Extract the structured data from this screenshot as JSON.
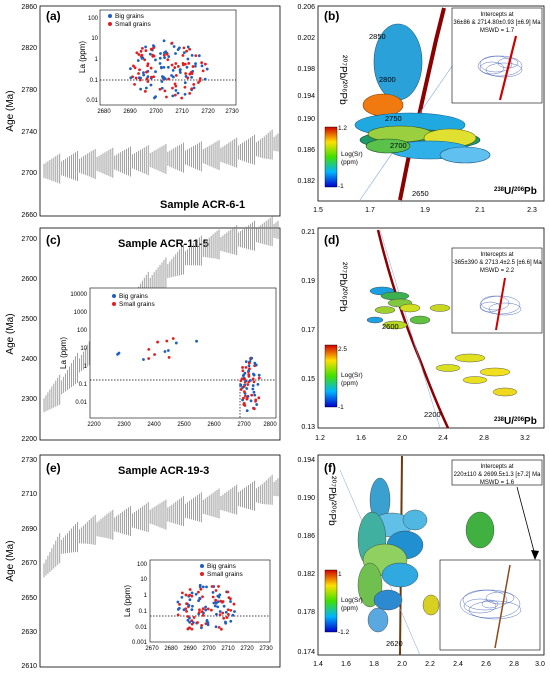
{
  "panels": [
    {
      "letter": "(a)",
      "sample": "Sample ACR-6-1",
      "ylabel": "Age (Ma)",
      "yticks": [
        "2860",
        "2820",
        "2780",
        "2740",
        "2700",
        "2660"
      ],
      "inset": {
        "ylabel": "La (ppm)",
        "yticks": [
          "100",
          "10",
          "1",
          "0.1",
          "0.01"
        ],
        "xticks": [
          "2680",
          "2690",
          "2700",
          "2710",
          "2720",
          "2730"
        ],
        "legend": [
          "Big grains",
          "Small grains"
        ]
      }
    },
    {
      "letter": "(b)",
      "yticks": [
        "0.206",
        "0.202",
        "0.198",
        "0.194",
        "0.190",
        "0.186",
        "0.182"
      ],
      "xticks": [
        "1.5",
        "1.7",
        "1.9",
        "2.1",
        "2.3"
      ],
      "xlabel_main": "U/",
      "xlabel_sup1": "238",
      "xlabel_sup2": "206",
      "xlabel_tail": "Pb",
      "ylabel": "²⁰⁷Pb/²⁰⁶Pb",
      "age_labels": [
        "2850",
        "2800",
        "2750",
        "2700",
        "2650"
      ],
      "colorbar": {
        "max": "1.2",
        "min": "-1",
        "label1": "Log(Sr)",
        "label2": "(ppm)"
      },
      "intercepts": [
        "Intercepts at",
        "36±86 & 2714.80±0.93 [±6.9] Ma",
        "MSWD = 1.7"
      ]
    },
    {
      "letter": "(c)",
      "sample": "Sample ACR-11-5",
      "ylabel": "Age (Ma)",
      "yticks": [
        "2700",
        "2600",
        "2500",
        "2400",
        "2300",
        "2200"
      ],
      "inset": {
        "ylabel": "La (ppm)",
        "yticks": [
          "10000",
          "1000",
          "100",
          "10",
          "1",
          "0.1",
          "0.01"
        ],
        "xticks": [
          "2200",
          "2300",
          "2400",
          "2500",
          "2600",
          "2700",
          "2800"
        ],
        "legend": [
          "Big grains",
          "Small grains"
        ]
      }
    },
    {
      "letter": "(d)",
      "yticks": [
        "0.21",
        "0.19",
        "0.17",
        "0.15",
        "0.13"
      ],
      "xticks": [
        "1.2",
        "1.6",
        "2.0",
        "2.4",
        "2.8",
        "3.2"
      ],
      "xlabel_main": "U/",
      "xlabel_sup1": "238",
      "xlabel_sup2": "206",
      "xlabel_tail": "Pb",
      "ylabel": "²⁰⁷Pb/²⁰⁶Pb",
      "age_labels": [
        "2600",
        "2200"
      ],
      "colorbar": {
        "max": "2.5",
        "min": "-1",
        "label1": "Log(Sr)",
        "label2": "(ppm)"
      },
      "intercepts": [
        "Intercepts at",
        "-365±390 & 2713.4±2.5 [±6.6] Ma",
        "MSWD = 2.2"
      ]
    },
    {
      "letter": "(e)",
      "sample": "Sample ACR-19-3",
      "ylabel": "Age (Ma)",
      "yticks": [
        "2730",
        "2710",
        "2690",
        "2670",
        "2650",
        "2630",
        "2610"
      ],
      "inset": {
        "ylabel": "La (ppm)",
        "yticks": [
          "100",
          "10",
          "1",
          "0.1",
          "0.01",
          "0.001"
        ],
        "xticks": [
          "2670",
          "2680",
          "2690",
          "2700",
          "2710",
          "2720",
          "2730"
        ],
        "legend": [
          "Big grains",
          "Small grains"
        ]
      }
    },
    {
      "letter": "(f)",
      "yticks": [
        "0.194",
        "0.190",
        "0.186",
        "0.182",
        "0.178",
        "0.174"
      ],
      "xticks": [
        "1.4",
        "1.6",
        "1.8",
        "2.0",
        "2.2",
        "2.4",
        "2.6",
        "2.8",
        "3.0"
      ],
      "ylabel": "²⁰⁷Pb/²⁰⁶Pb",
      "age_labels": [
        "2620"
      ],
      "colorbar": {
        "max": "1",
        "min": "-1.2",
        "label1": "Log(Sr)",
        "label2": "(ppm)"
      },
      "intercepts": [
        "Intercepts at",
        "220±110 & 2699.5±1.3 [±7.2] Ma",
        "MSWD = 1.6"
      ]
    }
  ],
  "colors": {
    "big_grains": "#1f5fbf",
    "small_grains": "#e02020",
    "concordia": "#8b0000",
    "error_bar": "#888888"
  },
  "chart_data": [
    {
      "type": "scatter",
      "panel": "a",
      "ylabel": "Age (Ma)",
      "ylim": [
        2660,
        2860
      ],
      "series": [
        {
          "values": [
            2703,
            2705,
            2707,
            2709,
            2710,
            2711,
            2712,
            2713,
            2714,
            2715,
            2716,
            2717,
            2718,
            2720,
            2722,
            2725,
            2730
          ]
        }
      ]
    },
    {
      "type": "scatter",
      "panel": "c",
      "ylabel": "Age (Ma)",
      "ylim": [
        2200,
        2750
      ],
      "series": [
        {
          "values": [
            2290,
            2330,
            2380,
            2430,
            2480,
            2530,
            2570,
            2610,
            2640,
            2670,
            2690,
            2705,
            2715,
            2725,
            2735,
            2745
          ]
        }
      ]
    },
    {
      "type": "scatter",
      "panel": "e",
      "ylabel": "Age (Ma)",
      "ylim": [
        2610,
        2735
      ],
      "series": [
        {
          "values": [
            2667,
            2680,
            2686,
            2690,
            2693,
            2695,
            2697,
            2699,
            2700,
            2702,
            2704,
            2706,
            2708,
            2710,
            2712,
            2716
          ]
        }
      ]
    }
  ]
}
